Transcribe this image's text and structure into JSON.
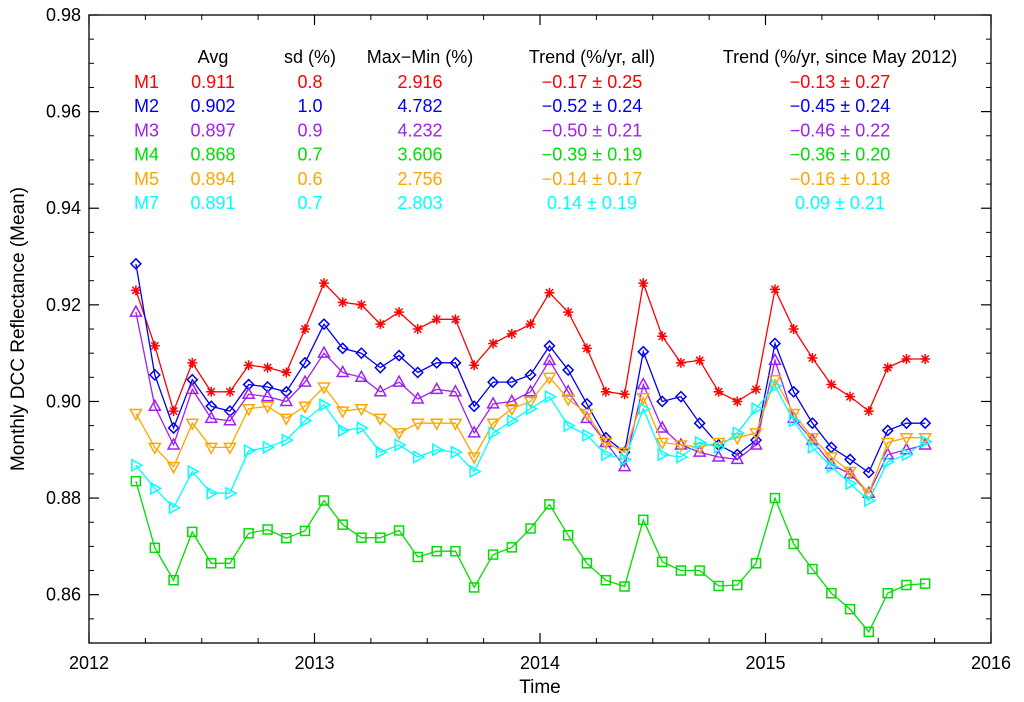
{
  "chart_data": {
    "type": "line",
    "title": "",
    "xlabel": "Time",
    "ylabel": "Monthly DCC Reflectance (Mean)",
    "xlim": [
      2012,
      2016
    ],
    "ylim": [
      0.85,
      0.98
    ],
    "x_ticks": [
      2012,
      2013,
      2014,
      2015,
      2016
    ],
    "x_tick_labels": [
      "2012",
      "2013",
      "2014",
      "2015",
      "2016"
    ],
    "y_ticks": [
      0.86,
      0.88,
      0.9,
      0.92,
      0.94,
      0.96,
      0.98
    ],
    "y_tick_labels": [
      "0.86",
      "0.88",
      "0.90",
      "0.92",
      "0.94",
      "0.96",
      "0.98"
    ],
    "x": [
      2012.208,
      2012.292,
      2012.375,
      2012.458,
      2012.542,
      2012.625,
      2012.708,
      2012.792,
      2012.875,
      2012.958,
      2013.042,
      2013.125,
      2013.208,
      2013.292,
      2013.375,
      2013.458,
      2013.542,
      2013.625,
      2013.708,
      2013.792,
      2013.875,
      2013.958,
      2014.042,
      2014.125,
      2014.208,
      2014.292,
      2014.375,
      2014.458,
      2014.542,
      2014.625,
      2014.708,
      2014.792,
      2014.875,
      2014.958,
      2015.042,
      2015.125,
      2015.208,
      2015.292,
      2015.375,
      2015.458,
      2015.542,
      2015.625,
      2015.708
    ],
    "table": {
      "headers": [
        "",
        "Avg",
        "sd (%)",
        "Max−Min (%)",
        "Trend (%/yr, all)",
        "Trend (%/yr, since May 2012)"
      ],
      "rows": [
        [
          "M1",
          "0.911",
          "0.8",
          "2.916",
          "−0.17 ± 0.25",
          "−0.13 ± 0.27"
        ],
        [
          "M2",
          "0.902",
          "1.0",
          "4.782",
          "−0.52 ± 0.24",
          "−0.45 ± 0.24"
        ],
        [
          "M3",
          "0.897",
          "0.9",
          "4.232",
          "−0.50 ± 0.21",
          "−0.46 ± 0.22"
        ],
        [
          "M4",
          "0.868",
          "0.7",
          "3.606",
          "−0.39 ± 0.19",
          "−0.36 ± 0.20"
        ],
        [
          "M5",
          "0.894",
          "0.6",
          "2.756",
          "−0.14 ± 0.17",
          "−0.16 ± 0.18"
        ],
        [
          "M7",
          "0.891",
          "0.7",
          "2.803",
          "0.14 ± 0.19",
          "0.09 ± 0.21"
        ]
      ]
    },
    "series": [
      {
        "name": "M1",
        "color": "#ff0000",
        "marker": "asterisk",
        "values": [
          0.923,
          0.9115,
          0.898,
          0.908,
          0.902,
          0.902,
          0.9075,
          0.907,
          0.906,
          0.915,
          0.9245,
          0.9205,
          0.92,
          0.916,
          0.9185,
          0.915,
          0.917,
          0.917,
          0.9075,
          0.912,
          0.914,
          0.916,
          0.9225,
          0.9185,
          0.911,
          0.902,
          0.9015,
          0.9245,
          0.9135,
          0.908,
          0.9085,
          0.902,
          0.9,
          0.9025,
          0.9232,
          0.915,
          0.909,
          0.9035,
          0.901,
          0.898,
          0.907,
          0.9088,
          0.9088
        ]
      },
      {
        "name": "M2",
        "color": "#0000ee",
        "marker": "diamond",
        "values": [
          0.9285,
          0.9055,
          0.8945,
          0.9045,
          0.899,
          0.898,
          0.9035,
          0.903,
          0.902,
          0.908,
          0.916,
          0.911,
          0.91,
          0.907,
          0.9095,
          0.906,
          0.908,
          0.908,
          0.899,
          0.904,
          0.904,
          0.9055,
          0.9115,
          0.9065,
          0.8995,
          0.8925,
          0.8895,
          0.9103,
          0.9,
          0.901,
          0.8955,
          0.891,
          0.889,
          0.892,
          0.912,
          0.902,
          0.8955,
          0.8905,
          0.888,
          0.8853,
          0.894,
          0.8955,
          0.8955
        ]
      },
      {
        "name": "M3",
        "color": "#a020f0",
        "marker": "triangle-up",
        "values": [
          0.9185,
          0.899,
          0.891,
          0.9025,
          0.8965,
          0.896,
          0.9015,
          0.901,
          0.9,
          0.904,
          0.91,
          0.906,
          0.905,
          0.902,
          0.904,
          0.9005,
          0.9025,
          0.902,
          0.8935,
          0.8995,
          0.9,
          0.902,
          0.9085,
          0.902,
          0.8965,
          0.8915,
          0.8865,
          0.9035,
          0.8945,
          0.891,
          0.8895,
          0.8885,
          0.888,
          0.891,
          0.9085,
          0.8965,
          0.892,
          0.887,
          0.885,
          0.881,
          0.889,
          0.89,
          0.891
        ]
      },
      {
        "name": "M4",
        "color": "#00dd00",
        "marker": "square",
        "values": [
          0.8835,
          0.8697,
          0.863,
          0.873,
          0.8665,
          0.8665,
          0.8727,
          0.8735,
          0.8717,
          0.8732,
          0.8795,
          0.8745,
          0.8718,
          0.8718,
          0.8733,
          0.8678,
          0.869,
          0.869,
          0.8615,
          0.8683,
          0.8698,
          0.8737,
          0.8787,
          0.8723,
          0.8665,
          0.863,
          0.8617,
          0.8755,
          0.8668,
          0.865,
          0.865,
          0.8618,
          0.862,
          0.8665,
          0.88,
          0.8705,
          0.8653,
          0.8603,
          0.857,
          0.8523,
          0.8603,
          0.862,
          0.8623
        ]
      },
      {
        "name": "M5",
        "color": "#ffa500",
        "marker": "triangle-down",
        "values": [
          0.8975,
          0.8905,
          0.8865,
          0.8955,
          0.8905,
          0.8905,
          0.8985,
          0.899,
          0.8965,
          0.899,
          0.903,
          0.898,
          0.8985,
          0.8965,
          0.8935,
          0.8955,
          0.8955,
          0.8955,
          0.8885,
          0.8955,
          0.8985,
          0.9,
          0.905,
          0.9005,
          0.8975,
          0.8915,
          0.8895,
          0.9008,
          0.8915,
          0.891,
          0.8905,
          0.8915,
          0.8925,
          0.8935,
          0.9045,
          0.8975,
          0.8925,
          0.8885,
          0.8855,
          0.881,
          0.8915,
          0.8925,
          0.8925
        ]
      },
      {
        "name": "M7",
        "color": "#00ffff",
        "marker": "triangle-right",
        "values": [
          0.8868,
          0.882,
          0.878,
          0.8855,
          0.881,
          0.881,
          0.8898,
          0.8905,
          0.892,
          0.896,
          0.8993,
          0.894,
          0.8945,
          0.8895,
          0.891,
          0.8885,
          0.89,
          0.8895,
          0.8855,
          0.8935,
          0.896,
          0.8985,
          0.901,
          0.895,
          0.893,
          0.889,
          0.888,
          0.8985,
          0.889,
          0.8885,
          0.8915,
          0.8905,
          0.8935,
          0.8985,
          0.9032,
          0.896,
          0.8905,
          0.8865,
          0.883,
          0.8795,
          0.8875,
          0.889,
          0.8917
        ]
      }
    ]
  }
}
